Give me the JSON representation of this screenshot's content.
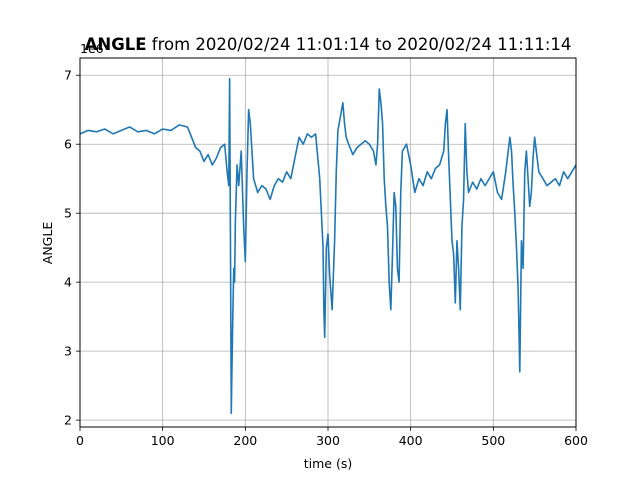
{
  "chart_data": {
    "type": "line",
    "title_bold": "ANGLE",
    "title_rest": " from 2020/02/24 11:01:14 to 2020/02/24 11:11:14",
    "xlabel": "time (s)",
    "ylabel": "ANGLE",
    "y_offset_label": "1e6",
    "xlim": [
      0,
      600
    ],
    "ylim": [
      1.9,
      7.25
    ],
    "xticks": [
      "0",
      "100",
      "200",
      "300",
      "400",
      "500",
      "600"
    ],
    "yticks": [
      "2",
      "3",
      "4",
      "5",
      "6",
      "7"
    ],
    "grid": true,
    "line_color": "#1f77b4",
    "series": [
      {
        "x": [
          0,
          10,
          20,
          30,
          40,
          50,
          60,
          70,
          80,
          90,
          100,
          110,
          120,
          130,
          135,
          140,
          145,
          150,
          155,
          160,
          165,
          170,
          175,
          178,
          180,
          181,
          182,
          183,
          184,
          185,
          186,
          187,
          188,
          189,
          190,
          192,
          195,
          198,
          200,
          202,
          204,
          206,
          208,
          210,
          215,
          220,
          225,
          230,
          235,
          240,
          245,
          250,
          255,
          260,
          265,
          270,
          275,
          280,
          285,
          290,
          292,
          294,
          295,
          296,
          298,
          300,
          302,
          305,
          308,
          310,
          312,
          315,
          318,
          320,
          322,
          325,
          330,
          335,
          340,
          345,
          350,
          355,
          358,
          360,
          362,
          364,
          366,
          368,
          370,
          372,
          374,
          376,
          378,
          380,
          382,
          384,
          386,
          388,
          390,
          395,
          400,
          405,
          410,
          415,
          420,
          425,
          430,
          435,
          440,
          442,
          444,
          446,
          448,
          450,
          452,
          454,
          456,
          458,
          460,
          462,
          464,
          466,
          468,
          470,
          475,
          480,
          485,
          490,
          495,
          500,
          505,
          510,
          515,
          520,
          522,
          524,
          526,
          528,
          530,
          532,
          534,
          536,
          538,
          540,
          542,
          544,
          546,
          548,
          550,
          555,
          560,
          565,
          570,
          575,
          580,
          585,
          590,
          595,
          600
        ],
        "y": [
          6.15,
          6.2,
          6.18,
          6.22,
          6.15,
          6.2,
          6.25,
          6.18,
          6.2,
          6.15,
          6.22,
          6.2,
          6.28,
          6.25,
          6.1,
          5.95,
          5.9,
          5.75,
          5.85,
          5.7,
          5.8,
          5.95,
          6.0,
          5.6,
          5.4,
          6.95,
          4.6,
          2.1,
          2.9,
          3.6,
          4.2,
          4.0,
          4.9,
          5.3,
          5.7,
          5.4,
          5.9,
          4.8,
          4.3,
          5.6,
          6.5,
          6.3,
          5.9,
          5.5,
          5.3,
          5.4,
          5.35,
          5.2,
          5.4,
          5.5,
          5.45,
          5.6,
          5.5,
          5.8,
          6.1,
          6.0,
          6.15,
          6.1,
          6.15,
          5.5,
          5.0,
          4.5,
          3.6,
          3.2,
          4.5,
          4.7,
          4.1,
          3.6,
          4.6,
          5.6,
          6.2,
          6.4,
          6.6,
          6.3,
          6.1,
          6.0,
          5.85,
          5.95,
          6.0,
          6.05,
          6.0,
          5.9,
          5.7,
          6.0,
          6.8,
          6.6,
          6.3,
          5.5,
          5.1,
          4.8,
          4.0,
          3.6,
          4.4,
          5.3,
          5.1,
          4.2,
          4.0,
          5.3,
          5.9,
          6.0,
          5.7,
          5.3,
          5.5,
          5.4,
          5.6,
          5.5,
          5.65,
          5.7,
          5.9,
          6.3,
          6.5,
          5.8,
          5.2,
          4.6,
          4.4,
          3.7,
          4.6,
          4.2,
          3.6,
          4.8,
          5.2,
          6.3,
          5.6,
          5.3,
          5.45,
          5.35,
          5.5,
          5.4,
          5.5,
          5.6,
          5.3,
          5.2,
          5.6,
          6.1,
          5.9,
          5.4,
          5.0,
          4.5,
          3.9,
          2.7,
          4.6,
          4.2,
          5.6,
          5.9,
          5.5,
          5.1,
          5.3,
          5.8,
          6.1,
          5.6,
          5.5,
          5.4,
          5.45,
          5.5,
          5.4,
          5.6,
          5.5,
          5.6,
          5.7
        ]
      }
    ]
  }
}
